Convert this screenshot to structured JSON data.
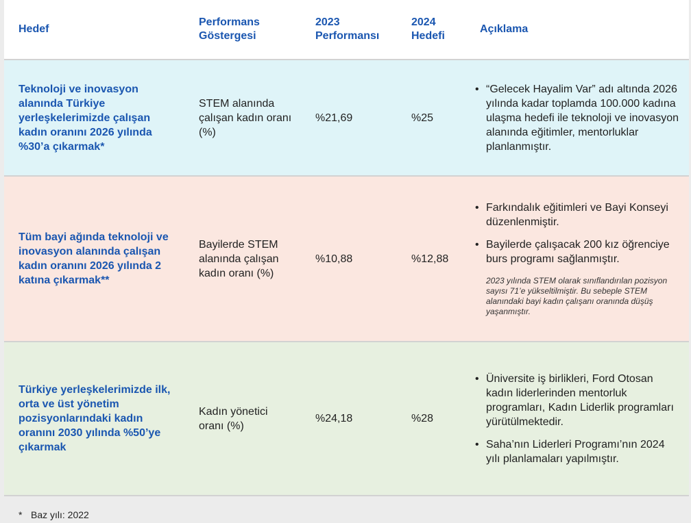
{
  "table": {
    "headers": {
      "goal": "Hedef",
      "indicator": "Performans Göstergesi",
      "perf_2023": "2023 Performansı",
      "target_2024": "2024 Hedefi",
      "description": "Açıklama"
    },
    "rows": [
      {
        "goal": "Teknoloji ve inovasyon alanında Türkiye yerleşkelerimizde çalışan kadın oranını 2026 yılında %30’a çıkarmak*",
        "indicator": "STEM alanında çalışan kadın oranı (%)",
        "perf_2023": "%21,69",
        "target_2024": "%25",
        "bullets": [
          "“Gelecek Hayalim Var” adı altında 2026 yılında kadar toplamda 100.000 kadına ulaşma hedefi ile teknoloji ve inovasyon alanında eğitimler, mentorluklar planlanmıştır."
        ],
        "note": ""
      },
      {
        "goal": "Tüm bayi ağında teknoloji ve inovasyon alanında çalışan kadın oranını 2026 yılında 2 katına çıkarmak**",
        "indicator": "Bayilerde STEM alanında çalışan kadın oranı (%)",
        "perf_2023": "%10,88",
        "target_2024": "%12,88",
        "bullets": [
          "Farkındalık eğitimleri ve Bayi Konseyi düzenlenmiştir.",
          "Bayilerde çalışacak 200 kız öğrenciye burs programı sağlanmıştır."
        ],
        "note": "2023 yılında STEM olarak sınıflandırılan pozisyon sayısı 71’e yükseltilmiştir. Bu sebeple STEM alanındaki bayi kadın çalışanı oranında düşüş yaşanmıştır."
      },
      {
        "goal": "Türkiye yerleşkelerimizde ilk, orta ve üst yönetim pozisyonlarındaki kadın oranını 2030 yılında %50’ye çıkarmak",
        "indicator": "Kadın yönetici oranı (%)",
        "perf_2023": "%24,18",
        "target_2024": "%28",
        "bullets": [
          "Üniversite iş birlikleri, Ford Otosan kadın liderlerinden mentorluk programları, Kadın Liderlik programları yürütülmektedir.",
          "Saha’nın Liderleri Programı’nın 2024 yılı planlamaları yapılmıştır."
        ],
        "note": ""
      }
    ]
  },
  "footnotes": [
    {
      "mark": "*",
      "text": "Baz yılı: 2022"
    }
  ],
  "bullet_glyph": "•",
  "colors": {
    "accent_blue": "#1a56b0",
    "row1_bg": "#dff4f8",
    "row2_bg": "#fbe7e0",
    "row3_bg": "#e7f0e0"
  }
}
